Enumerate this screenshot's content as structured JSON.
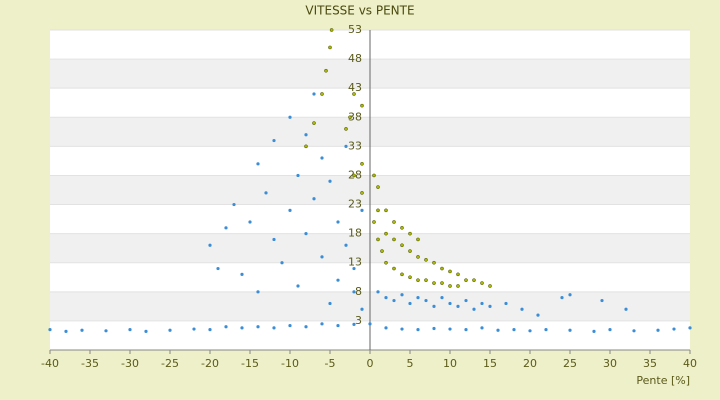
{
  "chart_data": {
    "type": "scatter",
    "title": "VITESSE vs PENTE",
    "x_label": "Pente [%]",
    "xlim": [
      -40,
      40
    ],
    "xticks": [
      -40,
      -35,
      -30,
      -25,
      -20,
      -15,
      -10,
      -5,
      0,
      5,
      10,
      15,
      20,
      25,
      30,
      35,
      40
    ],
    "ylim": [
      -2,
      53
    ],
    "yticks": [
      53,
      48,
      43,
      38,
      33,
      28,
      23,
      18,
      13,
      8,
      3
    ],
    "grid": true,
    "series": [
      {
        "color": "#3b8ed6",
        "x": [
          -40,
          -38,
          -36,
          -33,
          -30,
          -28,
          -25,
          -22,
          -20,
          -18,
          -16,
          -14,
          -12,
          -10,
          -8,
          -6,
          -4,
          -2,
          0,
          2,
          4,
          6,
          8,
          10,
          12,
          14,
          16,
          18,
          20,
          22,
          25,
          28,
          30,
          33,
          36,
          38,
          40,
          1,
          2,
          3,
          4,
          5,
          6,
          7,
          8,
          9,
          10,
          11,
          12,
          13,
          14,
          15,
          17,
          19,
          21,
          24,
          25,
          29,
          32,
          -20,
          -19,
          -18,
          -17,
          -16,
          -15,
          -14,
          -14,
          -13,
          -12,
          -12,
          -11,
          -10,
          -10,
          -9,
          -9,
          -8,
          -8,
          -7,
          -7,
          -6,
          -6,
          -5,
          -5,
          -4,
          -4,
          -3,
          -3,
          -2,
          -2,
          -1,
          -1
        ],
        "values": [
          1.5,
          1.2,
          1.4,
          1.3,
          1.5,
          1.2,
          1.4,
          1.6,
          1.5,
          2,
          1.8,
          2,
          1.8,
          2.2,
          2,
          2.5,
          2.2,
          2.4,
          2.5,
          1.8,
          1.6,
          1.5,
          1.7,
          1.6,
          1.5,
          1.8,
          1.4,
          1.5,
          1.3,
          1.5,
          1.4,
          1.2,
          1.5,
          1.3,
          1.4,
          1.6,
          1.8,
          8,
          7,
          6.5,
          7.5,
          6,
          7,
          6.5,
          5.5,
          7,
          6,
          5.5,
          6.5,
          5,
          6,
          5.5,
          6,
          5,
          4,
          7,
          7.5,
          6.5,
          5,
          16,
          12,
          19,
          23,
          11,
          20,
          30,
          8,
          25,
          17,
          34,
          13,
          22,
          38,
          28,
          9,
          35,
          18,
          24,
          42,
          31,
          14,
          27,
          6,
          20,
          10,
          16,
          33,
          12,
          8,
          22,
          5
        ]
      },
      {
        "color": "#a8b800",
        "x": [
          -8,
          -7,
          -6,
          -5.5,
          -5,
          -4.8,
          -3,
          -2,
          -2.5,
          -1,
          -1,
          -2,
          -1,
          0.5,
          1,
          1,
          1.5,
          2,
          2,
          3,
          3,
          4,
          4,
          5,
          5,
          6,
          6,
          7,
          7,
          8,
          8,
          9,
          9,
          10,
          10,
          11,
          11,
          12,
          13,
          14,
          15,
          2,
          1,
          0.5,
          3,
          4,
          5,
          6
        ],
        "values": [
          33,
          37,
          42,
          46,
          50,
          53,
          36,
          42,
          38,
          40,
          30,
          28,
          25,
          20,
          22,
          17,
          15,
          18,
          13,
          17,
          12,
          16,
          11,
          15,
          10.5,
          14,
          10,
          13.5,
          10,
          13,
          9.5,
          12,
          9.5,
          11.5,
          9,
          11,
          9,
          10,
          10,
          9.5,
          9,
          22,
          26,
          28,
          20,
          19,
          18,
          17
        ]
      }
    ]
  }
}
